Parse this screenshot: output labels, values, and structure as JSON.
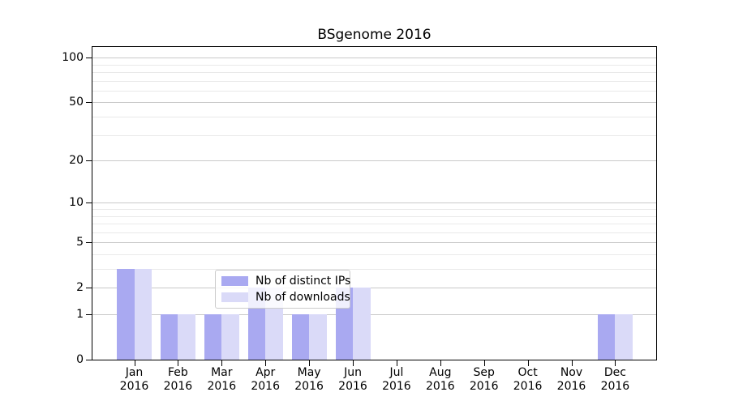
{
  "chart_data": {
    "type": "bar",
    "title": "BSgenome 2016",
    "categories": [
      {
        "line1": "Jan",
        "line2": "2016"
      },
      {
        "line1": "Feb",
        "line2": "2016"
      },
      {
        "line1": "Mar",
        "line2": "2016"
      },
      {
        "line1": "Apr",
        "line2": "2016"
      },
      {
        "line1": "May",
        "line2": "2016"
      },
      {
        "line1": "Jun",
        "line2": "2016"
      },
      {
        "line1": "Jul",
        "line2": "2016"
      },
      {
        "line1": "Aug",
        "line2": "2016"
      },
      {
        "line1": "Sep",
        "line2": "2016"
      },
      {
        "line1": "Oct",
        "line2": "2016"
      },
      {
        "line1": "Nov",
        "line2": "2016"
      },
      {
        "line1": "Dec",
        "line2": "2016"
      }
    ],
    "series": [
      {
        "name": "Nb of distinct IPs",
        "color": "#a9a9f1",
        "values": [
          3,
          1,
          1,
          2,
          1,
          2,
          0,
          0,
          0,
          0,
          0,
          1
        ]
      },
      {
        "name": "Nb of downloads",
        "color": "#dadaf8",
        "values": [
          3,
          1,
          1,
          2,
          1,
          2,
          0,
          0,
          0,
          0,
          0,
          1
        ]
      }
    ],
    "y_axis": {
      "scale": "log10(1+x)",
      "tick_values": [
        0,
        1,
        2,
        5,
        10,
        20,
        50,
        100
      ],
      "tick_labels": [
        "0",
        "1",
        "2",
        "5",
        "10",
        "20",
        "50",
        "100"
      ],
      "minor_gridline_values": [
        3,
        4,
        6,
        7,
        8,
        9,
        30,
        40,
        60,
        70,
        80,
        90
      ],
      "ylim": [
        0,
        118
      ]
    },
    "legend": {
      "position": "lower center",
      "entries": [
        "Nb of distinct IPs",
        "Nb of downloads"
      ]
    },
    "grid": true,
    "colors": {
      "grid_major": "#c9c9c9",
      "grid_minor": "#e9e9e9",
      "axis": "#000000",
      "background": "#ffffff"
    }
  }
}
